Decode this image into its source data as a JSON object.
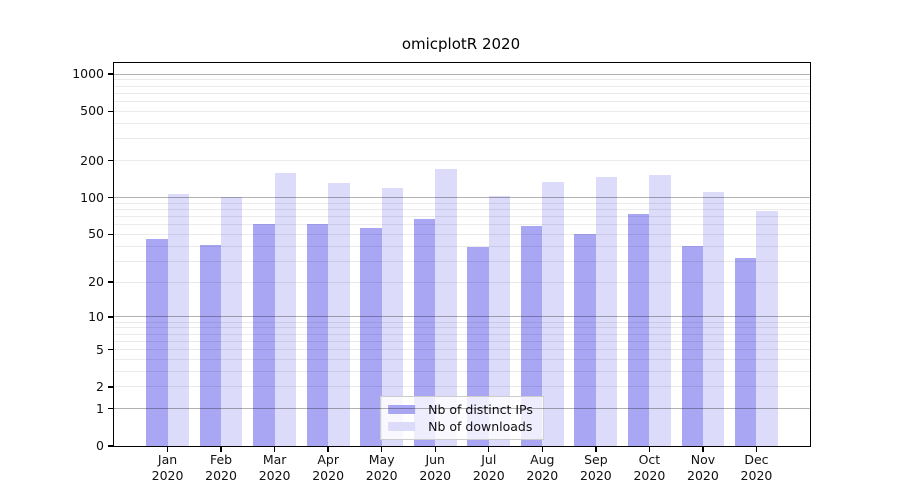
{
  "chart_data": {
    "type": "bar",
    "title": "omicplotR 2020",
    "y_scale": "log1p",
    "ylim": [
      0,
      1230
    ],
    "yticks": [
      0,
      1,
      2,
      5,
      10,
      20,
      50,
      100,
      200,
      500,
      1000
    ],
    "grid": true,
    "grid_decades": [
      1,
      10,
      100,
      1000
    ],
    "legend_position": "lower center",
    "categories": [
      "Jan",
      "Feb",
      "Mar",
      "Apr",
      "May",
      "Jun",
      "Jul",
      "Aug",
      "Sep",
      "Oct",
      "Nov",
      "Dec"
    ],
    "year_label": "2020",
    "series": [
      {
        "name": "Nb of distinct IPs",
        "color": "#a9a7f3",
        "values": [
          46,
          41,
          61,
          61,
          56,
          67,
          39,
          59,
          50,
          73,
          40,
          32
        ]
      },
      {
        "name": "Nb of downloads",
        "color": "#dcdbf9",
        "values": [
          107,
          102,
          160,
          132,
          120,
          172,
          103,
          133,
          147,
          153,
          112,
          78
        ]
      }
    ],
    "colors": {
      "grid_major": "rgba(0,0,0,0.30)",
      "grid_minor": "rgba(0,0,0,0.08)",
      "axis": "#000000",
      "tick_text": "#111111",
      "legend_border": "#cccccc",
      "legend_bg": "rgba(255,255,255,0.8)",
      "background": "#ffffff"
    }
  }
}
